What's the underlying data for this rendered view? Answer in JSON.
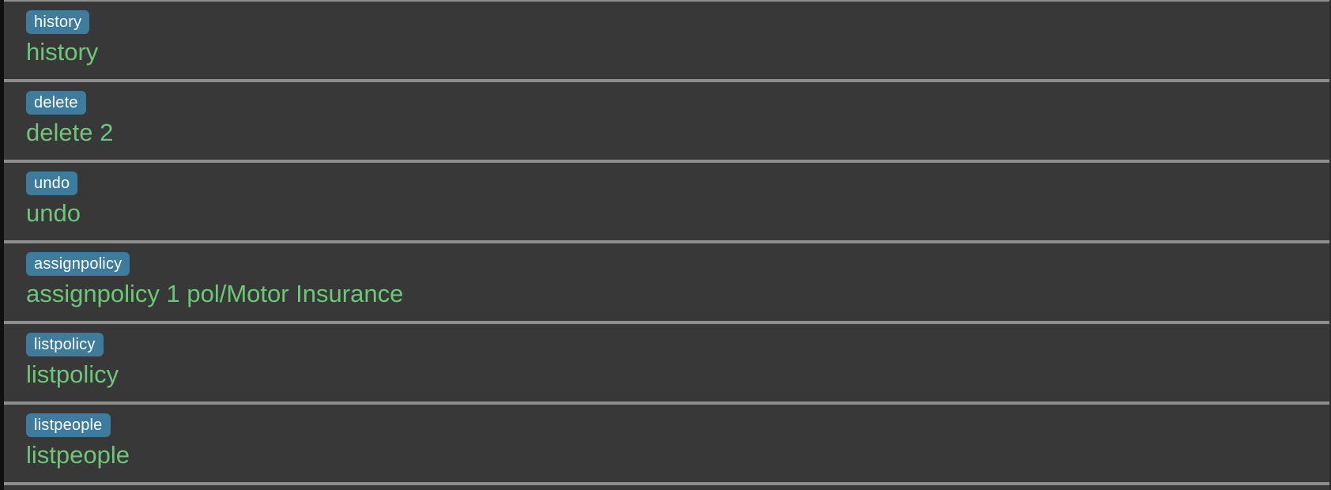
{
  "theme": {
    "background": "#383838",
    "divider": "#8d8d8d",
    "badge_background": "#3d7c9c",
    "badge_text_color": "#ffffff",
    "command_text_color": "#6cc878",
    "left_edge_color": "#101010",
    "right_edge_color": "#2c2c2c"
  },
  "history": {
    "items": [
      {
        "badge": "history",
        "command": "history"
      },
      {
        "badge": "delete",
        "command": "delete 2"
      },
      {
        "badge": "undo",
        "command": "undo"
      },
      {
        "badge": "assignpolicy",
        "command": "assignpolicy 1 pol/Motor Insurance"
      },
      {
        "badge": "listpolicy",
        "command": "listpolicy"
      },
      {
        "badge": "listpeople",
        "command": "listpeople"
      }
    ]
  }
}
